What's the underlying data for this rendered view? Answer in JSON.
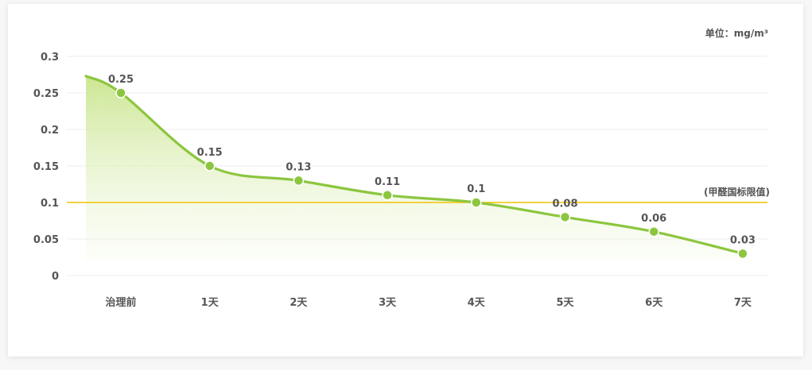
{
  "chart_data": {
    "type": "area",
    "unit_label": "单位：mg/m³",
    "categories": [
      "治理前",
      "1天",
      "2天",
      "3天",
      "4天",
      "5天",
      "6天",
      "7天"
    ],
    "values": [
      0.25,
      0.15,
      0.13,
      0.11,
      0.1,
      0.08,
      0.06,
      0.03
    ],
    "data_labels": [
      "0.25",
      "0.15",
      "0.13",
      "0.11",
      "0.1",
      "0.08",
      "0.06",
      "0.03"
    ],
    "y_ticks": [
      0,
      0.05,
      0.1,
      0.15,
      0.2,
      0.25,
      0.3
    ],
    "y_tick_labels": [
      "0",
      "0.05",
      "0.1",
      "0.15",
      "0.2",
      "0.25",
      "0.3"
    ],
    "ylim": [
      0,
      0.3
    ],
    "grid": true,
    "reference_line": {
      "value": 0.1,
      "label": "(甲醛国标限值)",
      "color": "#f0c400"
    },
    "colors": {
      "line": "#8cc63f",
      "marker": "#8cc63f",
      "fill": "#cde89a"
    }
  }
}
